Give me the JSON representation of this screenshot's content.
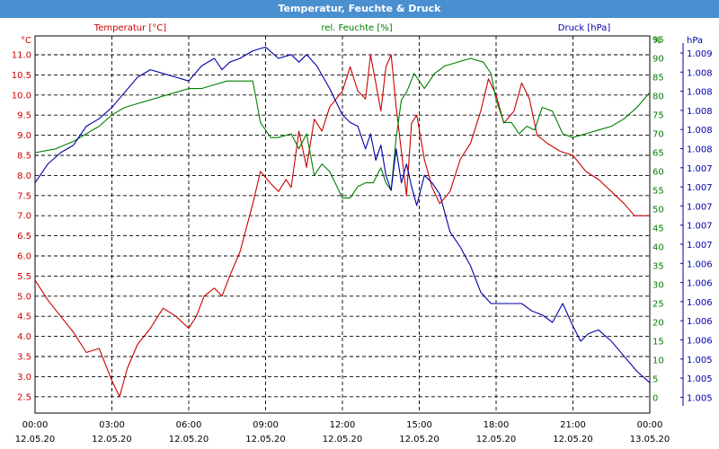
{
  "window": {
    "title": "Temperatur, Feuchte & Druck"
  },
  "colors": {
    "temperature": "#cc0000",
    "humidity": "#008000",
    "pressure": "#0000aa",
    "titlebar": "#4a8fd0",
    "grid": "#000000"
  },
  "chart_data": {
    "type": "line",
    "title": "Temperatur, Feuchte & Druck",
    "grid": true,
    "x_axis": {
      "labels": [
        [
          "00:00",
          "12.05.20"
        ],
        [
          "03:00",
          "12.05.20"
        ],
        [
          "06:00",
          "12.05.20"
        ],
        [
          "09:00",
          "12.05.20"
        ],
        [
          "12:00",
          "12.05.20"
        ],
        [
          "15:00",
          "12.05.20"
        ],
        [
          "18:00",
          "12.05.20"
        ],
        [
          "21:00",
          "12.05.20"
        ],
        [
          "00:00",
          "13.05.20"
        ]
      ],
      "range_hours": [
        0,
        24
      ]
    },
    "axes": {
      "temperature": {
        "unit_label": "°C",
        "ylim": [
          2.0,
          11.3
        ],
        "ticks": [
          "11.0",
          "10.5",
          "10.0",
          "9.5",
          "9.0",
          "8.5",
          "8.0",
          "7.5",
          "7.0",
          "6.5",
          "6.0",
          "5.5",
          "5.0",
          "4.5",
          "4.0",
          "3.5",
          "3.0",
          "2.5"
        ]
      },
      "humidity": {
        "unit_label": "%",
        "ylim": [
          0,
          99
        ],
        "ticks": [
          "95",
          "90",
          "85",
          "80",
          "75",
          "70",
          "65",
          "60",
          "55",
          "50",
          "45",
          "40",
          "35",
          "30",
          "25",
          "20",
          "15",
          "10",
          "5",
          "0"
        ]
      },
      "pressure": {
        "unit_label": "hPa",
        "ticks": [
          "1.009",
          "1.008",
          "1.008",
          "1.008",
          "1.008",
          "1.008",
          "1.007",
          "1.007",
          "1.007",
          "1.007",
          "1.007",
          "1.006",
          "1.006",
          "1.006",
          "1.006",
          "1.006",
          "1.005",
          "1.005",
          "1.005"
        ]
      }
    },
    "series": [
      {
        "name": "Temperatur [°C]",
        "key": "temperature",
        "color": "#cc0000",
        "points": [
          [
            0,
            5.4
          ],
          [
            0.5,
            4.9
          ],
          [
            1,
            4.5
          ],
          [
            1.5,
            4.1
          ],
          [
            2,
            3.6
          ],
          [
            2.5,
            3.7
          ],
          [
            3,
            2.9
          ],
          [
            3.3,
            2.5
          ],
          [
            3.6,
            3.2
          ],
          [
            4,
            3.8
          ],
          [
            4.5,
            4.2
          ],
          [
            5,
            4.7
          ],
          [
            5.5,
            4.5
          ],
          [
            6,
            4.2
          ],
          [
            6.3,
            4.5
          ],
          [
            6.6,
            5.0
          ],
          [
            7,
            5.2
          ],
          [
            7.3,
            5.0
          ],
          [
            7.6,
            5.5
          ],
          [
            8,
            6.1
          ],
          [
            8.5,
            7.3
          ],
          [
            8.8,
            8.1
          ],
          [
            9.2,
            7.8
          ],
          [
            9.5,
            7.6
          ],
          [
            9.8,
            7.9
          ],
          [
            10,
            7.7
          ],
          [
            10.3,
            9.1
          ],
          [
            10.6,
            8.2
          ],
          [
            10.9,
            9.4
          ],
          [
            11.2,
            9.1
          ],
          [
            11.5,
            9.7
          ],
          [
            12,
            10.1
          ],
          [
            12.3,
            10.7
          ],
          [
            12.6,
            10.1
          ],
          [
            12.9,
            9.9
          ],
          [
            13.1,
            11.0
          ],
          [
            13.3,
            10.3
          ],
          [
            13.5,
            9.6
          ],
          [
            13.7,
            10.7
          ],
          [
            13.9,
            11.0
          ],
          [
            14.1,
            9.7
          ],
          [
            14.3,
            8.6
          ],
          [
            14.5,
            7.5
          ],
          [
            14.7,
            9.3
          ],
          [
            14.9,
            9.5
          ],
          [
            15.2,
            8.4
          ],
          [
            15.5,
            7.7
          ],
          [
            15.8,
            7.3
          ],
          [
            16.2,
            7.6
          ],
          [
            16.6,
            8.4
          ],
          [
            17,
            8.8
          ],
          [
            17.4,
            9.6
          ],
          [
            17.7,
            10.4
          ],
          [
            18,
            10.0
          ],
          [
            18.3,
            9.3
          ],
          [
            18.7,
            9.6
          ],
          [
            19,
            10.3
          ],
          [
            19.3,
            9.9
          ],
          [
            19.6,
            9.0
          ],
          [
            20,
            8.8
          ],
          [
            20.5,
            8.6
          ],
          [
            21,
            8.5
          ],
          [
            21.5,
            8.1
          ],
          [
            22,
            7.9
          ],
          [
            22.5,
            7.6
          ],
          [
            23,
            7.3
          ],
          [
            23.4,
            7.0
          ],
          [
            23.8,
            7.0
          ],
          [
            24,
            7.0
          ]
        ]
      },
      {
        "name": "rel. Feuchte [%]",
        "key": "humidity",
        "color": "#008000",
        "points": [
          [
            0,
            65
          ],
          [
            0.8,
            66
          ],
          [
            1.5,
            68
          ],
          [
            2,
            70
          ],
          [
            2.5,
            72
          ],
          [
            3,
            75
          ],
          [
            3.5,
            77
          ],
          [
            4,
            78
          ],
          [
            4.5,
            79
          ],
          [
            5,
            80
          ],
          [
            5.5,
            81
          ],
          [
            6,
            82
          ],
          [
            6.5,
            82
          ],
          [
            7,
            83
          ],
          [
            7.5,
            84
          ],
          [
            8,
            84
          ],
          [
            8.5,
            84
          ],
          [
            8.8,
            73
          ],
          [
            9.2,
            69
          ],
          [
            9.5,
            69
          ],
          [
            10,
            70
          ],
          [
            10.3,
            66
          ],
          [
            10.6,
            70
          ],
          [
            10.9,
            59
          ],
          [
            11.2,
            62
          ],
          [
            11.5,
            60
          ],
          [
            12,
            53
          ],
          [
            12.3,
            53
          ],
          [
            12.6,
            56
          ],
          [
            12.9,
            57
          ],
          [
            13.2,
            57
          ],
          [
            13.5,
            61
          ],
          [
            13.7,
            57
          ],
          [
            13.9,
            55
          ],
          [
            14.1,
            69
          ],
          [
            14.3,
            79
          ],
          [
            14.5,
            81
          ],
          [
            14.8,
            86
          ],
          [
            15.2,
            82
          ],
          [
            15.6,
            86
          ],
          [
            16,
            88
          ],
          [
            16.5,
            89
          ],
          [
            17,
            90
          ],
          [
            17.5,
            89
          ],
          [
            17.8,
            86
          ],
          [
            18,
            79
          ],
          [
            18.3,
            73
          ],
          [
            18.6,
            73
          ],
          [
            18.9,
            70
          ],
          [
            19.2,
            72
          ],
          [
            19.5,
            71
          ],
          [
            19.8,
            77
          ],
          [
            20.2,
            76
          ],
          [
            20.6,
            70
          ],
          [
            21,
            69
          ],
          [
            21.5,
            70
          ],
          [
            22,
            71
          ],
          [
            22.5,
            72
          ],
          [
            23,
            74
          ],
          [
            23.5,
            77
          ],
          [
            24,
            81
          ]
        ]
      },
      {
        "name": "Druck [hPa]",
        "key": "pressure",
        "color": "#0000aa",
        "points": [
          [
            0,
            57
          ],
          [
            0.5,
            62
          ],
          [
            1,
            65
          ],
          [
            1.5,
            67
          ],
          [
            2,
            72
          ],
          [
            2.5,
            74
          ],
          [
            3,
            77
          ],
          [
            3.5,
            81
          ],
          [
            4,
            85
          ],
          [
            4.5,
            87
          ],
          [
            5,
            86
          ],
          [
            5.5,
            85
          ],
          [
            6,
            84
          ],
          [
            6.5,
            88
          ],
          [
            7,
            90
          ],
          [
            7.3,
            87
          ],
          [
            7.6,
            89
          ],
          [
            8,
            90
          ],
          [
            8.5,
            92
          ],
          [
            9,
            93
          ],
          [
            9.5,
            90
          ],
          [
            10,
            91
          ],
          [
            10.3,
            89
          ],
          [
            10.6,
            91
          ],
          [
            11,
            88
          ],
          [
            11.5,
            82
          ],
          [
            12,
            75
          ],
          [
            12.3,
            73
          ],
          [
            12.6,
            72
          ],
          [
            12.9,
            66
          ],
          [
            13.1,
            70
          ],
          [
            13.3,
            63
          ],
          [
            13.5,
            67
          ],
          [
            13.7,
            59
          ],
          [
            13.9,
            55
          ],
          [
            14.1,
            66
          ],
          [
            14.3,
            57
          ],
          [
            14.5,
            62
          ],
          [
            14.7,
            56
          ],
          [
            14.9,
            51
          ],
          [
            15.2,
            59
          ],
          [
            15.5,
            57
          ],
          [
            15.8,
            54
          ],
          [
            16.2,
            44
          ],
          [
            16.6,
            40
          ],
          [
            17,
            35
          ],
          [
            17.4,
            28
          ],
          [
            17.8,
            25
          ],
          [
            18.2,
            25
          ],
          [
            18.6,
            25
          ],
          [
            19,
            25
          ],
          [
            19.4,
            23
          ],
          [
            19.8,
            22
          ],
          [
            20.2,
            20
          ],
          [
            20.6,
            25
          ],
          [
            21,
            19
          ],
          [
            21.3,
            15
          ],
          [
            21.6,
            17
          ],
          [
            22,
            18
          ],
          [
            22.5,
            15
          ],
          [
            23,
            11
          ],
          [
            23.5,
            7
          ],
          [
            24,
            4
          ]
        ]
      }
    ]
  }
}
